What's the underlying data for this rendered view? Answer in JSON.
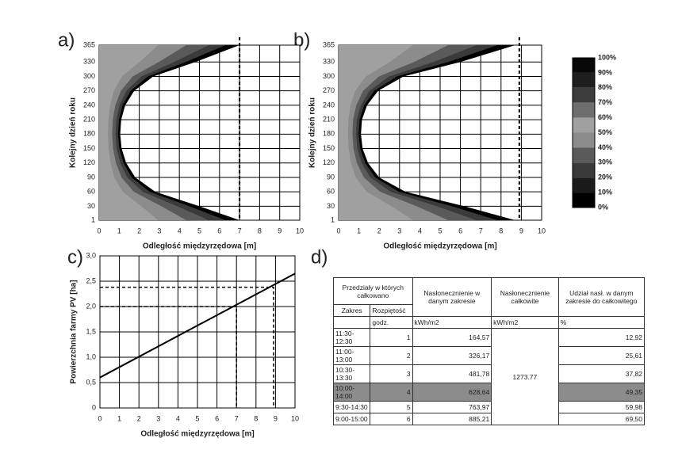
{
  "panel_labels": [
    "a)",
    "b)",
    "c)",
    "d)"
  ],
  "chart_data": [
    {
      "type": "contour",
      "xlabel": "Odległość międzyrzędowa [m]",
      "ylabel": "Kolejny dzień roku",
      "xlim": [
        0,
        10
      ],
      "xticks": [
        0,
        1,
        2,
        3,
        4,
        5,
        6,
        7,
        8,
        9,
        10
      ],
      "ylim": [
        1,
        365
      ],
      "yticks": [
        1,
        30,
        60,
        90,
        120,
        150,
        180,
        210,
        240,
        270,
        300,
        330,
        365
      ],
      "boundary": {
        "days": [
          1,
          30,
          60,
          90,
          120,
          150,
          180,
          210,
          240,
          270,
          300,
          330,
          365
        ],
        "x": [
          7,
          5,
          2.8,
          1.8,
          1.35,
          1.12,
          1.05,
          1.1,
          1.3,
          1.75,
          2.7,
          4.8,
          7
        ]
      },
      "vline": 7
    },
    {
      "type": "contour",
      "xlabel": "Odległość międzyrzędowa [m]",
      "ylabel": "Kolejny dzień roku",
      "xlim": [
        0,
        10
      ],
      "xticks": [
        0,
        1,
        2,
        3,
        4,
        5,
        6,
        7,
        8,
        9,
        10
      ],
      "ylim": [
        1,
        365
      ],
      "yticks": [
        1,
        30,
        60,
        90,
        120,
        150,
        180,
        210,
        240,
        270,
        300,
        330,
        365
      ],
      "boundary": {
        "days": [
          1,
          30,
          60,
          90,
          120,
          150,
          180,
          210,
          240,
          270,
          300,
          330,
          365
        ],
        "x": [
          8.7,
          6.2,
          3.3,
          2.0,
          1.45,
          1.18,
          1.1,
          1.15,
          1.4,
          1.95,
          3.2,
          6,
          8.7
        ]
      },
      "vline": 8.9
    },
    {
      "type": "line",
      "xlabel": "Odległość międzyrzędowa [m]",
      "ylabel": "Powierzchnia farmy PV [ha]",
      "xlim": [
        0,
        10
      ],
      "xticks": [
        0,
        1,
        2,
        3,
        4,
        5,
        6,
        7,
        8,
        9,
        10
      ],
      "ylim": [
        0,
        3
      ],
      "yticks": [
        0,
        {
          "value": 0.5,
          "label": "0,5"
        },
        {
          "value": 1,
          "label": "1,0"
        },
        {
          "value": 1.5,
          "label": "1,5"
        },
        {
          "value": 2,
          "label": "2,0"
        },
        {
          "value": 2.5,
          "label": "2,5"
        },
        {
          "value": 3,
          "label": "3,0"
        }
      ],
      "x": [
        0,
        10
      ],
      "values": [
        0.6,
        2.65
      ],
      "color": "#000000",
      "markers": [
        {
          "x": 7,
          "y": 2.0
        },
        {
          "x": 8.9,
          "y": 2.38
        }
      ]
    }
  ],
  "colorbar": {
    "ticks": [
      {
        "value": 100,
        "label": "100%"
      },
      {
        "value": 90,
        "label": "90%"
      },
      {
        "value": 80,
        "label": "80%"
      },
      {
        "value": 70,
        "label": "70%"
      },
      {
        "value": 60,
        "label": "60%"
      },
      {
        "value": 50,
        "label": "50%"
      },
      {
        "value": 40,
        "label": "40%"
      },
      {
        "value": 30,
        "label": "30%"
      },
      {
        "value": 20,
        "label": "20%"
      },
      {
        "value": 10,
        "label": "10%"
      },
      {
        "value": 0,
        "label": "0%"
      }
    ],
    "colors": [
      "#080808",
      "#1e1e1e",
      "#3c3c3c",
      "#6e6e6e",
      "#a0a0a0",
      "#8c8c8c",
      "#5a5a5a",
      "#3a3a3a",
      "#1a1a1a",
      "#000000"
    ]
  },
  "table": {
    "header": [
      "Przedziały w których całkowano",
      "Nasłonecznienie w danym zakresie",
      "Nasłonecznienie całkowite",
      "Udział nasł. w danym zakresie do całkowitego"
    ],
    "subheader": [
      "Zakres",
      "Rozpiętość"
    ],
    "units": [
      "godz.",
      "kWh/m2",
      "kWh/m2",
      "%"
    ],
    "total": "1273.77",
    "rows": [
      [
        "11:30-12:30",
        "1",
        "164,57",
        "12,92"
      ],
      [
        "11:00-13:00",
        "2",
        "326,17",
        "25,61"
      ],
      [
        "10:30-13:30",
        "3",
        "481,78",
        "37,82"
      ],
      [
        "10:00-14:00",
        "4",
        "628,64",
        "49,35"
      ],
      [
        "9:30-14:30",
        "5",
        "763,97",
        "59,98"
      ],
      [
        "9:00-15:00",
        "6",
        "885,21",
        "69,50"
      ]
    ],
    "highlight_row": 3
  }
}
